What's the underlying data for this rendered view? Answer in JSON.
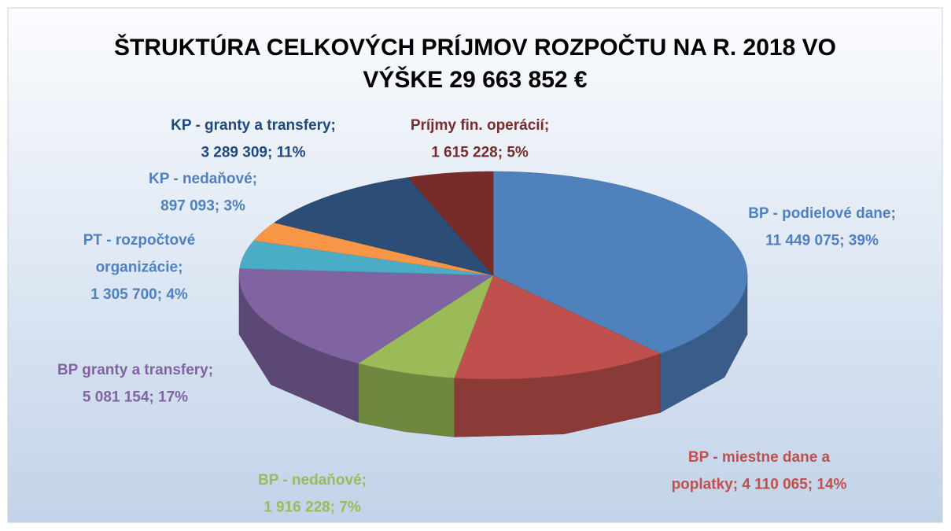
{
  "chart_data": {
    "type": "pie3d",
    "title": [
      "ŠTRUKTÚRA CELKOVÝCH PRÍJMOV ROZPOČTU NA R. 2018 VO",
      "VÝŠKE 29 663 852 €"
    ],
    "values": [
      11449075,
      4110065,
      1916228,
      5081154,
      1305700,
      897093,
      3289309,
      1615228
    ],
    "value_labels": [
      [
        "BP - podielové dane;",
        "11 449 075; 39%"
      ],
      [
        "BP - miestne dane a",
        "poplatky; 4 110 065; 14%"
      ],
      [
        "BP - nedaňové;",
        "1 916 228; 7%"
      ],
      [
        "BP granty a transfery;",
        "5 081 154; 17%"
      ],
      [
        "PT - rozpočtové",
        "organizácie;",
        "1 305 700; 4%"
      ],
      [
        "KP - nedaňové;",
        "897 093; 3%"
      ],
      [
        "KP - granty a transfery;",
        "3 289 309; 11%"
      ],
      [
        "Príjmy fin. operácií;",
        "1 615 228; 5%"
      ]
    ],
    "colors": [
      "#4f81bd",
      "#c0504d",
      "#9bbb59",
      "#8064a2",
      "#4bacc6",
      "#f79646",
      "#2c4d75",
      "#772c2a"
    ],
    "label_colors": [
      "#4f81bd",
      "#c0504d",
      "#9bbb59",
      "#8064a2",
      "#4f81bd",
      "#4f81bd",
      "#1f497d",
      "#772c2a"
    ]
  }
}
